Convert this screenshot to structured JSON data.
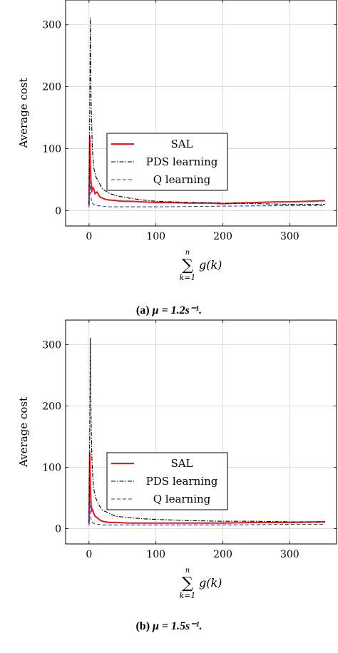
{
  "chart_data": [
    {
      "type": "line",
      "caption_label": "(a)",
      "caption_math": "μ = 1.2s⁻¹.",
      "xlabel_sum_top": "n",
      "xlabel_sum_bottom": "k=1",
      "xlabel_sum_symbol": "∑",
      "xlabel_expr": "g(k)",
      "ylabel": "Average cost",
      "xlim": [
        -35,
        370
      ],
      "ylim": [
        -25,
        340
      ],
      "xticks": [
        0,
        100,
        200,
        300
      ],
      "yticks": [
        0,
        100,
        200,
        300
      ],
      "grid": true,
      "legend_position": "center-left",
      "series": [
        {
          "name": "SAL",
          "color": "#e8191b",
          "style": "solid",
          "x": [
            0,
            1,
            2,
            3,
            4,
            5,
            7,
            9,
            12,
            16,
            20,
            25,
            30,
            40,
            50,
            60,
            80,
            100,
            120,
            150,
            180,
            200,
            220,
            250,
            280,
            300,
            330,
            353
          ],
          "y": [
            8,
            120,
            72,
            45,
            30,
            38,
            35,
            27,
            30,
            22,
            20,
            18,
            17,
            16,
            15,
            15,
            14,
            13,
            13,
            12,
            12,
            11,
            12,
            13,
            14,
            14,
            15,
            16
          ]
        },
        {
          "name": "PDS learning",
          "color": "#000000",
          "style": "dashdot",
          "x": [
            0,
            1,
            2,
            3,
            4,
            5,
            7,
            10,
            15,
            20,
            30,
            40,
            60,
            80,
            100,
            150,
            200,
            250,
            300,
            353
          ],
          "y": [
            10,
            150,
            311,
            180,
            140,
            100,
            70,
            55,
            45,
            35,
            28,
            24,
            20,
            17,
            15,
            13,
            12,
            11,
            10,
            10
          ]
        },
        {
          "name": "Q learning",
          "color": "#1f3fd6",
          "style": "dashed",
          "x": [
            0,
            1,
            2,
            3,
            5,
            8,
            12,
            20,
            30,
            50,
            100,
            200,
            300,
            353
          ],
          "y": [
            5,
            50,
            30,
            20,
            12,
            9,
            8,
            7,
            6,
            6,
            6,
            7,
            8,
            8
          ]
        }
      ]
    },
    {
      "type": "line",
      "caption_label": "(b)",
      "caption_math": "μ = 1.5s⁻¹.",
      "xlabel_sum_top": "n",
      "xlabel_sum_bottom": "k=1",
      "xlabel_sum_symbol": "∑",
      "xlabel_expr": "g(k)",
      "ylabel": "Average cost",
      "xlim": [
        -35,
        370
      ],
      "ylim": [
        -25,
        340
      ],
      "xticks": [
        0,
        100,
        200,
        300
      ],
      "yticks": [
        0,
        100,
        200,
        300
      ],
      "grid": true,
      "legend_position": "center-left",
      "series": [
        {
          "name": "SAL",
          "color": "#e8191b",
          "style": "solid",
          "x": [
            0,
            1,
            2,
            3,
            4,
            5,
            7,
            9,
            12,
            16,
            20,
            25,
            30,
            40,
            60,
            80,
            100,
            150,
            200,
            250,
            300,
            353
          ],
          "y": [
            8,
            125,
            70,
            40,
            28,
            32,
            25,
            20,
            18,
            14,
            12,
            11,
            10,
            10,
            9,
            9,
            9,
            9,
            9,
            10,
            10,
            11
          ]
        },
        {
          "name": "PDS learning",
          "color": "#000000",
          "style": "dashdot",
          "x": [
            0,
            1,
            2,
            3,
            4,
            5,
            7,
            10,
            15,
            20,
            30,
            40,
            60,
            80,
            100,
            150,
            200,
            250,
            300,
            353
          ],
          "y": [
            10,
            150,
            311,
            180,
            130,
            95,
            65,
            50,
            38,
            30,
            25,
            20,
            18,
            16,
            15,
            13,
            12,
            12,
            11,
            11
          ]
        },
        {
          "name": "Q learning",
          "color": "#1f3fd6",
          "style": "dashed",
          "x": [
            0,
            1,
            2,
            3,
            5,
            8,
            12,
            20,
            30,
            50,
            100,
            200,
            300,
            353
          ],
          "y": [
            5,
            45,
            25,
            15,
            10,
            8,
            7,
            6,
            6,
            6,
            6,
            6,
            7,
            7
          ]
        }
      ]
    }
  ]
}
